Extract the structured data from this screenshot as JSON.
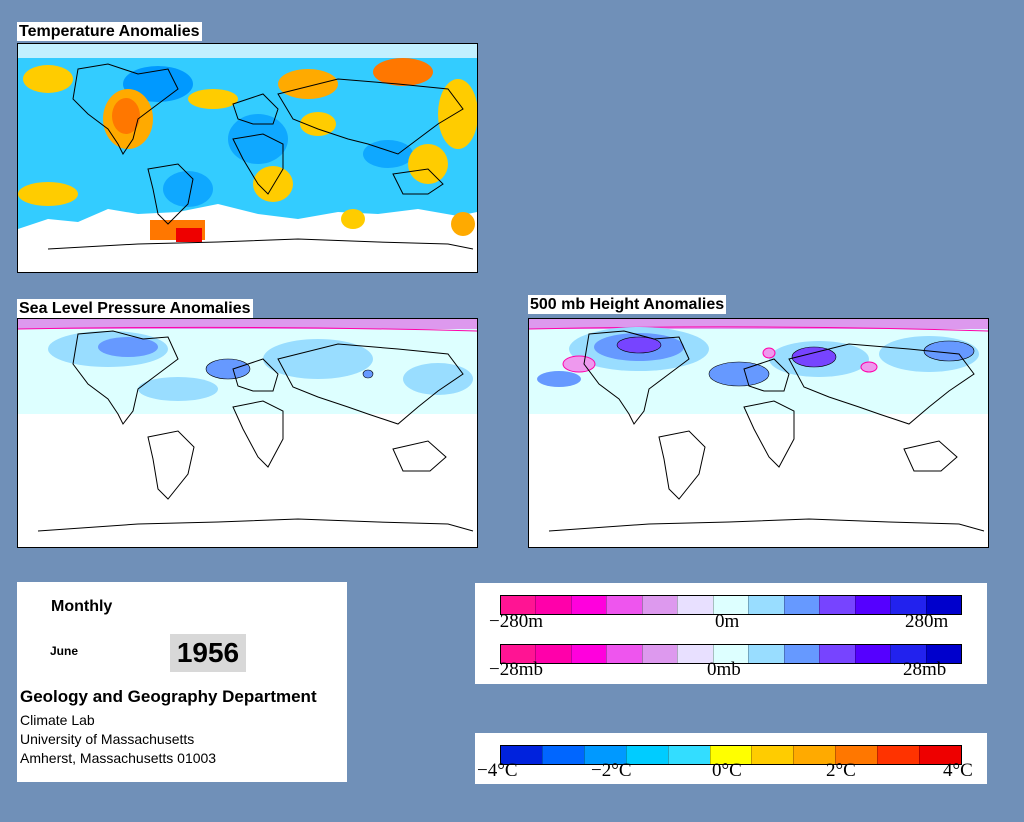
{
  "panels": {
    "temperature": {
      "title": "Temperature Anomalies"
    },
    "slp": {
      "title": "Sea Level Pressure Anomalies"
    },
    "height500": {
      "title": "500 mb Height Anomalies"
    }
  },
  "info": {
    "period": "Monthly",
    "month": "June",
    "year": "1956",
    "department": "Geology and Geography Department",
    "lab": "Climate Lab",
    "university": "University of Massachusetts",
    "address": "Amherst, Massachusetts 01003"
  },
  "legends": {
    "height": {
      "labels": [
        "−280m",
        "0m",
        "280m"
      ]
    },
    "pressure": {
      "labels": [
        "−28mb",
        "0mb",
        "28mb"
      ]
    },
    "temperature": {
      "labels": [
        "−4°C",
        "−2°C",
        "0°C",
        "2°C",
        "4°C"
      ]
    }
  },
  "colors": {
    "background": "#7090b8",
    "anomaly_scale_height_pressure": [
      "#ff1493",
      "#ff00aa",
      "#ff00dd",
      "#ee55ee",
      "#dd99ee",
      "#e8e0ff",
      "#ddffff",
      "#99ddff",
      "#6699ff",
      "#7744ff",
      "#5500ff",
      "#2222ee",
      "#0000cc"
    ],
    "anomaly_scale_temperature": [
      "#0022dd",
      "#0066ff",
      "#0099ff",
      "#00ccff",
      "#33ddff",
      "#ffff00",
      "#ffcc00",
      "#ffaa00",
      "#ff7700",
      "#ff3300",
      "#ee0000"
    ]
  }
}
